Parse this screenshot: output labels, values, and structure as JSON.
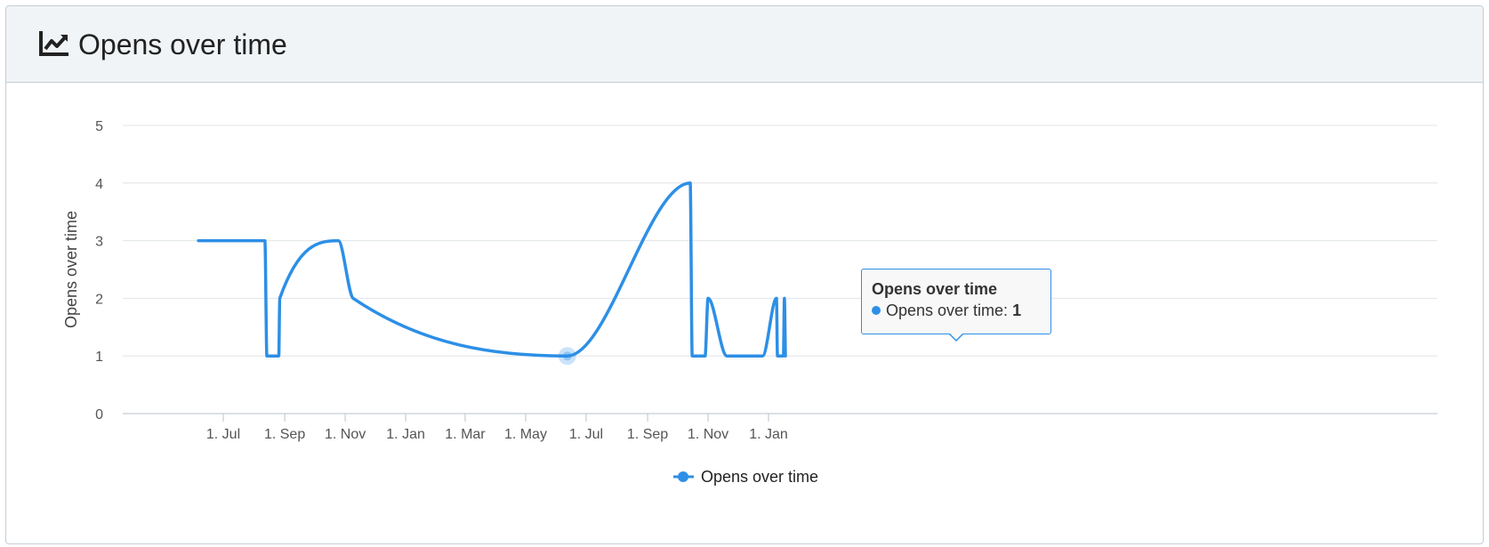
{
  "panel": {
    "title": "Opens over time",
    "icon": "line-chart-icon"
  },
  "tooltip": {
    "title": "Opens over time",
    "series_label": "Opens over time:",
    "value": "1",
    "date": "2024-06-12"
  },
  "colors": {
    "series": "#2d8fe6",
    "grid": "#e0e4e8",
    "header_bg": "#f1f4f7"
  },
  "chart_data": {
    "type": "line",
    "title": "",
    "xlabel": "",
    "ylabel": "Opens over time",
    "ylim": [
      0,
      5
    ],
    "yticks": [
      "0",
      "1",
      "2",
      "3",
      "4",
      "5"
    ],
    "xticks": [
      {
        "label": "1. Jul",
        "date": "2023-07-01"
      },
      {
        "label": "1. Sep",
        "date": "2023-09-01"
      },
      {
        "label": "1. Nov",
        "date": "2023-11-01"
      },
      {
        "label": "1. Jan",
        "date": "2024-01-01"
      },
      {
        "label": "1. Mar",
        "date": "2024-03-01"
      },
      {
        "label": "1. May",
        "date": "2024-05-01"
      },
      {
        "label": "1. Jul",
        "date": "2024-07-01"
      },
      {
        "label": "1. Sep",
        "date": "2024-09-01"
      },
      {
        "label": "1. Nov",
        "date": "2024-11-01"
      },
      {
        "label": "1. Jan",
        "date": "2025-01-01"
      }
    ],
    "grid": true,
    "legend": "bottom-center",
    "series": [
      {
        "name": "Opens over time",
        "color": "#2d8fe6",
        "points": [
          {
            "x": "2023-06-06",
            "y": 3
          },
          {
            "x": "2023-08-12",
            "y": 3
          },
          {
            "x": "2023-08-14",
            "y": 1
          },
          {
            "x": "2023-08-26",
            "y": 1
          },
          {
            "x": "2023-08-27",
            "y": 2
          },
          {
            "x": "2023-10-25",
            "y": 3
          },
          {
            "x": "2023-11-09",
            "y": 2
          },
          {
            "x": "2024-06-12",
            "y": 1
          },
          {
            "x": "2024-10-14",
            "y": 4
          },
          {
            "x": "2024-10-16",
            "y": 1
          },
          {
            "x": "2024-10-29",
            "y": 1
          },
          {
            "x": "2024-11-01",
            "y": 2
          },
          {
            "x": "2024-11-20",
            "y": 1
          },
          {
            "x": "2024-12-26",
            "y": 1
          },
          {
            "x": "2025-01-09",
            "y": 2
          },
          {
            "x": "2025-01-10",
            "y": 1
          },
          {
            "x": "2025-01-16",
            "y": 1
          },
          {
            "x": "2025-01-17",
            "y": 2
          },
          {
            "x": "2025-01-18",
            "y": 1
          }
        ]
      }
    ]
  }
}
